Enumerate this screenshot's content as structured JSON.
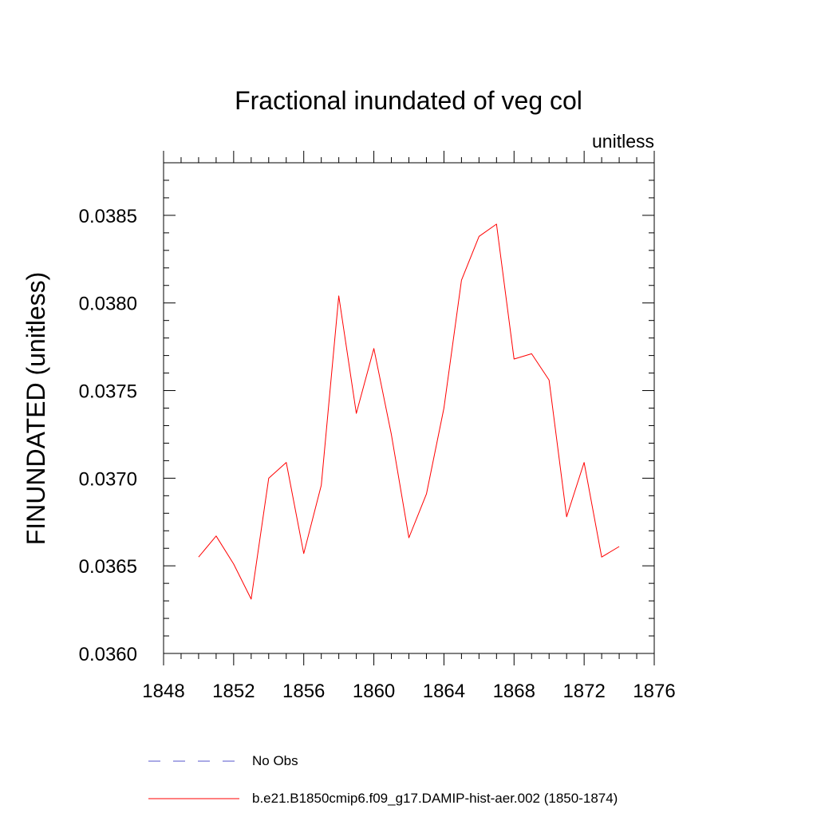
{
  "chart_data": {
    "type": "line",
    "title": "Fractional inundated of veg col",
    "units_label": "unitless",
    "ylabel": "FINUNDATED  (unitless)",
    "xlabel": "",
    "xlim": [
      1848,
      1876
    ],
    "ylim": [
      0.036,
      0.0388
    ],
    "x_ticks": [
      1848,
      1852,
      1856,
      1860,
      1864,
      1868,
      1872,
      1876
    ],
    "y_ticks": [
      "0.0360",
      "0.0365",
      "0.0370",
      "0.0375",
      "0.0380",
      "0.0385"
    ],
    "x_tick_labels": [
      "1848",
      "1852",
      "1856",
      "1860",
      "1864",
      "1868",
      "1872",
      "1876"
    ],
    "grid": false,
    "legend_placement": "bottom",
    "series": [
      {
        "name": "b.e21.B1850cmip6.f09_g17.DAMIP-hist-aer.002 (1850-1874)",
        "color": "#ff0000",
        "style": "solid",
        "x": [
          1850,
          1851,
          1852,
          1853,
          1854,
          1855,
          1856,
          1857,
          1858,
          1859,
          1860,
          1861,
          1862,
          1863,
          1864,
          1865,
          1866,
          1867,
          1868,
          1869,
          1870,
          1871,
          1872,
          1873,
          1874
        ],
        "values": [
          0.03655,
          0.03667,
          0.03651,
          0.03631,
          0.037,
          0.03709,
          0.03657,
          0.03696,
          0.03804,
          0.03737,
          0.03774,
          0.03725,
          0.03666,
          0.03691,
          0.0374,
          0.03813,
          0.03838,
          0.03845,
          0.03768,
          0.03771,
          0.03756,
          0.03678,
          0.03709,
          0.03655,
          0.03661
        ]
      }
    ],
    "legend": [
      {
        "label": "No Obs",
        "color": "#5555cc",
        "style": "dashed"
      },
      {
        "label": "b.e21.B1850cmip6.f09_g17.DAMIP-hist-aer.002 (1850-1874)",
        "color": "#ff0000",
        "style": "solid"
      }
    ]
  }
}
